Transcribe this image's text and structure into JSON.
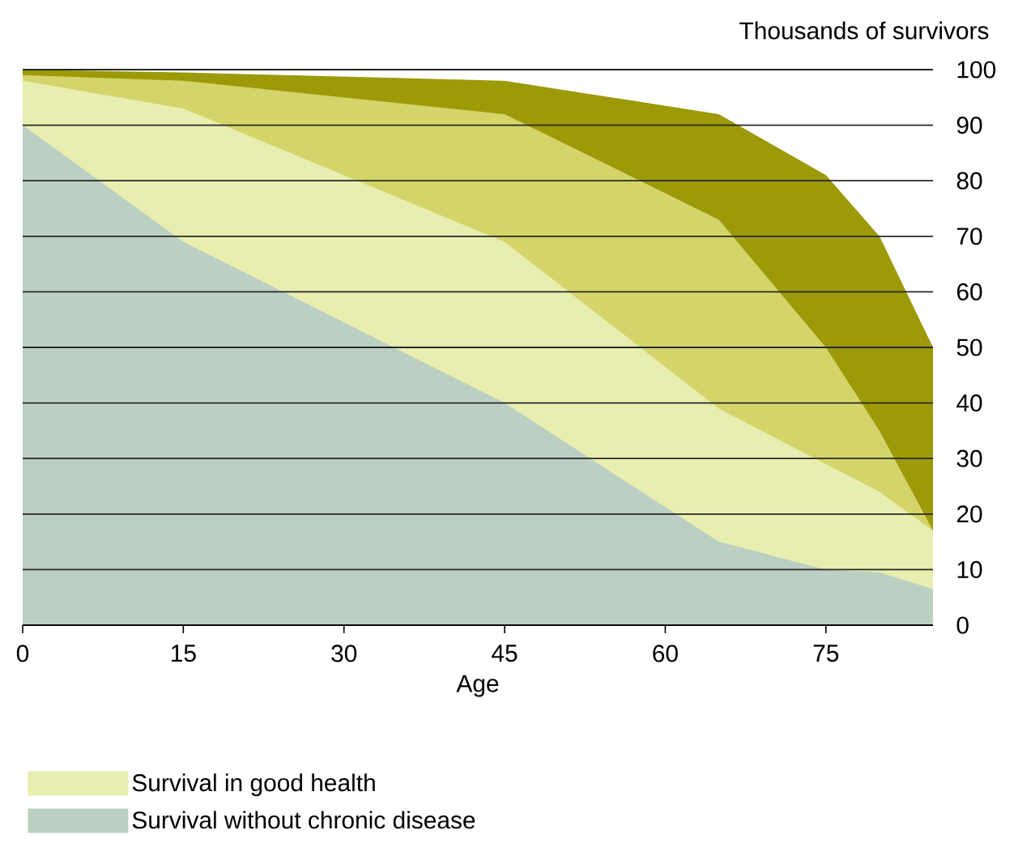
{
  "chart_data": {
    "type": "area",
    "xlabel": "Age",
    "ylabel": "Thousands of survivors",
    "xlim": [
      0,
      85
    ],
    "ylim": [
      0,
      100
    ],
    "xticks": [
      0,
      15,
      30,
      45,
      60,
      75
    ],
    "yticks": [
      0,
      10,
      20,
      30,
      40,
      50,
      60,
      70,
      80,
      90,
      100
    ],
    "grid": "y",
    "legend": "bottom",
    "x": [
      0,
      15,
      45,
      65,
      75,
      80,
      85
    ],
    "series": [
      {
        "color": "#9c9a08",
        "values": [
          100,
          99.5,
          98,
          92,
          81,
          70,
          50
        ]
      },
      {
        "color": "#d4d46a",
        "values": [
          99,
          98,
          92,
          73,
          50,
          35,
          17
        ]
      },
      {
        "name": "Survival in good health",
        "color": "#e7eeb0",
        "values": [
          98,
          93,
          69,
          39,
          29,
          24,
          17
        ]
      },
      {
        "name": "Survival without chronic disease",
        "color": "#bbcfc2",
        "values": [
          90,
          69,
          40,
          15,
          10,
          9.5,
          6.5
        ]
      }
    ]
  }
}
